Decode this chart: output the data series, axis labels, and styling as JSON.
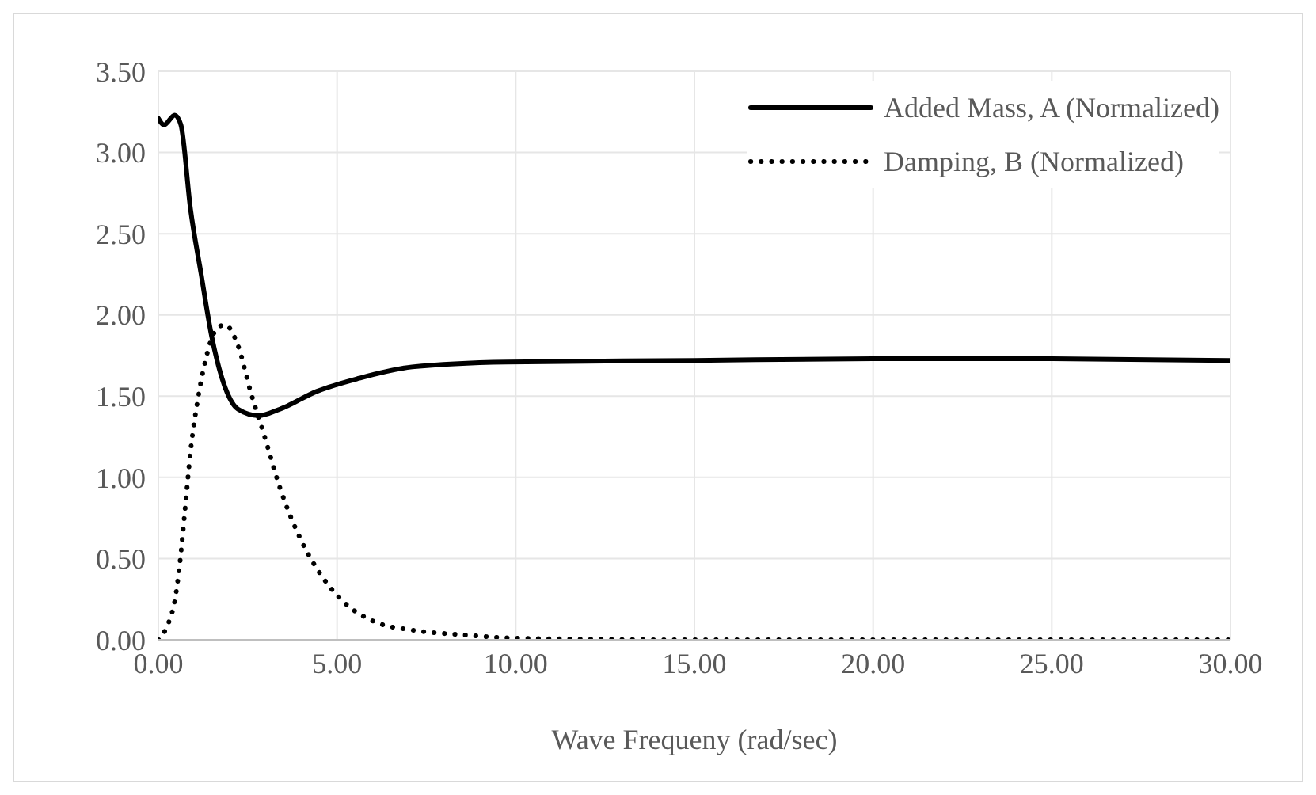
{
  "chart_data": {
    "type": "line",
    "xlabel": "Wave Frequeny  (rad/sec)",
    "x": [
      0,
      0.16,
      0.46,
      0.63,
      0.9,
      1.19,
      1.49,
      1.78,
      2.23,
      2.81,
      3.4,
      4.44,
      5.62,
      7.1,
      9.75,
      15,
      20,
      25,
      30
    ],
    "series": [
      {
        "name": "Added Mass, A (Normalized)",
        "color": "#000000",
        "line_style": "solid",
        "values": [
          3.21,
          3.17,
          3.23,
          3.17,
          2.65,
          2.26,
          1.87,
          1.61,
          1.42,
          1.38,
          1.42,
          1.53,
          1.61,
          1.68,
          1.71,
          1.72,
          1.73,
          1.73,
          1.72
        ]
      },
      {
        "name": "Damping, B (Normalized)",
        "color": "#000000",
        "line_style": "dotted",
        "x": [
          0,
          0.31,
          0.46,
          0.6,
          0.75,
          0.9,
          1.12,
          1.34,
          1.56,
          1.86,
          2.23,
          2.59,
          2.96,
          3.41,
          4.0,
          4.58,
          5.25,
          6.06,
          7.09,
          8.56,
          10,
          15,
          20,
          25,
          30
        ],
        "values": [
          0,
          0.12,
          0.24,
          0.47,
          0.81,
          1.16,
          1.5,
          1.74,
          1.89,
          1.94,
          1.81,
          1.52,
          1.26,
          0.93,
          0.61,
          0.39,
          0.22,
          0.11,
          0.06,
          0.03,
          0.01,
          0,
          0,
          0,
          0
        ]
      }
    ],
    "xlim": [
      0,
      30
    ],
    "xticks": [
      {
        "value": 0,
        "label": "0.00"
      },
      {
        "value": 5,
        "label": "5.00"
      },
      {
        "value": 10,
        "label": "10.00"
      },
      {
        "value": 15,
        "label": "15.00"
      },
      {
        "value": 20,
        "label": "20.00"
      },
      {
        "value": 25,
        "label": "25.00"
      },
      {
        "value": 30,
        "label": "30.00"
      }
    ],
    "ylim": [
      0,
      3.5
    ],
    "yticks": [
      {
        "value": 0,
        "label": "0.00"
      },
      {
        "value": 0.5,
        "label": "0.50"
      },
      {
        "value": 1,
        "label": "1.00"
      },
      {
        "value": 1.5,
        "label": "1.50"
      },
      {
        "value": 2,
        "label": "2.00"
      },
      {
        "value": 2.5,
        "label": "2.50"
      },
      {
        "value": 3,
        "label": "3.00"
      },
      {
        "value": 3.5,
        "label": "3.50"
      }
    ],
    "grid": true,
    "legend": "top right",
    "marker": "none"
  }
}
